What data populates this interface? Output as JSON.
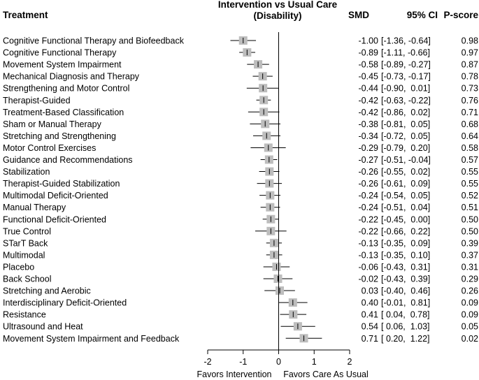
{
  "chart_data": {
    "type": "forest",
    "title": "Intervention vs Usual Care",
    "subtitle": "(Disability)",
    "columns": {
      "treatment": "Treatment",
      "smd": "SMD",
      "ci": "95% CI",
      "pscore": "P-score"
    },
    "xlim": [
      -2,
      2
    ],
    "xticks": [
      "-2",
      "-1",
      "0",
      "1",
      "2"
    ],
    "xtick_values": [
      -2,
      -1,
      0,
      1,
      2
    ],
    "reference_line": 0,
    "xlabel_left": "Favors Intervention",
    "xlabel_right": "Favors Care As Usual",
    "rows": [
      {
        "label": "Cognitive Functional Therapy and Biofeedback",
        "smd": -1.0,
        "lo": -1.36,
        "hi": -0.64,
        "smd_text": "-1.00",
        "ci_text": "[-1.36, -0.64]",
        "pscore": "0.98"
      },
      {
        "label": "Cognitive Functional Therapy",
        "smd": -0.89,
        "lo": -1.11,
        "hi": -0.66,
        "smd_text": "-0.89",
        "ci_text": "[-1.11, -0.66]",
        "pscore": "0.97"
      },
      {
        "label": "Movement System Impairment",
        "smd": -0.58,
        "lo": -0.89,
        "hi": -0.27,
        "smd_text": "-0.58",
        "ci_text": "[-0.89, -0.27]",
        "pscore": "0.87"
      },
      {
        "label": "Mechanical Diagnosis and Therapy",
        "smd": -0.45,
        "lo": -0.73,
        "hi": -0.17,
        "smd_text": "-0.45",
        "ci_text": "[-0.73, -0.17]",
        "pscore": "0.78"
      },
      {
        "label": "Strengthening and Motor Control",
        "smd": -0.44,
        "lo": -0.9,
        "hi": 0.01,
        "smd_text": "-0.44",
        "ci_text": "[-0.90,  0.01]",
        "pscore": "0.73"
      },
      {
        "label": "Therapist-Guided",
        "smd": -0.42,
        "lo": -0.63,
        "hi": -0.22,
        "smd_text": "-0.42",
        "ci_text": "[-0.63, -0.22]",
        "pscore": "0.76"
      },
      {
        "label": "Treatment-Based Classification",
        "smd": -0.42,
        "lo": -0.86,
        "hi": 0.02,
        "smd_text": "-0.42",
        "ci_text": "[-0.86,  0.02]",
        "pscore": "0.71"
      },
      {
        "label": "Sham or Manual Therapy",
        "smd": -0.38,
        "lo": -0.81,
        "hi": 0.05,
        "smd_text": "-0.38",
        "ci_text": "[-0.81,  0.05]",
        "pscore": "0.68"
      },
      {
        "label": "Stretching and Strengthening",
        "smd": -0.34,
        "lo": -0.72,
        "hi": 0.05,
        "smd_text": "-0.34",
        "ci_text": "[-0.72,  0.05]",
        "pscore": "0.64"
      },
      {
        "label": "Motor Control Exercises",
        "smd": -0.29,
        "lo": -0.79,
        "hi": 0.2,
        "smd_text": "-0.29",
        "ci_text": "[-0.79,  0.20]",
        "pscore": "0.58"
      },
      {
        "label": "Guidance and Recommendations",
        "smd": -0.27,
        "lo": -0.51,
        "hi": -0.04,
        "smd_text": "-0.27",
        "ci_text": "[-0.51, -0.04]",
        "pscore": "0.57"
      },
      {
        "label": "Stabilization",
        "smd": -0.26,
        "lo": -0.55,
        "hi": 0.02,
        "smd_text": "-0.26",
        "ci_text": "[-0.55,  0.02]",
        "pscore": "0.55"
      },
      {
        "label": "Therapist-Guided Stabilization",
        "smd": -0.26,
        "lo": -0.61,
        "hi": 0.09,
        "smd_text": "-0.26",
        "ci_text": "[-0.61,  0.09]",
        "pscore": "0.55"
      },
      {
        "label": "Multimodal Deficit-Oriented",
        "smd": -0.24,
        "lo": -0.54,
        "hi": 0.05,
        "smd_text": "-0.24",
        "ci_text": "[-0.54,  0.05]",
        "pscore": "0.52"
      },
      {
        "label": "Manual Therapy",
        "smd": -0.24,
        "lo": -0.51,
        "hi": 0.04,
        "smd_text": "-0.24",
        "ci_text": "[-0.51,  0.04]",
        "pscore": "0.51"
      },
      {
        "label": "Functional Deficit-Oriented",
        "smd": -0.22,
        "lo": -0.45,
        "hi": 0.0,
        "smd_text": "-0.22",
        "ci_text": "[-0.45,  0.00]",
        "pscore": "0.50"
      },
      {
        "label": "True Control",
        "smd": -0.22,
        "lo": -0.66,
        "hi": 0.22,
        "smd_text": "-0.22",
        "ci_text": "[-0.66,  0.22]",
        "pscore": "0.50"
      },
      {
        "label": "STarT Back",
        "smd": -0.13,
        "lo": -0.35,
        "hi": 0.09,
        "smd_text": "-0.13",
        "ci_text": "[-0.35,  0.09]",
        "pscore": "0.39"
      },
      {
        "label": "Multimodal",
        "smd": -0.13,
        "lo": -0.35,
        "hi": 0.1,
        "smd_text": "-0.13",
        "ci_text": "[-0.35,  0.10]",
        "pscore": "0.37"
      },
      {
        "label": "Placebo",
        "smd": -0.06,
        "lo": -0.43,
        "hi": 0.31,
        "smd_text": "-0.06",
        "ci_text": "[-0.43,  0.31]",
        "pscore": "0.31"
      },
      {
        "label": "Back School",
        "smd": -0.02,
        "lo": -0.43,
        "hi": 0.39,
        "smd_text": "-0.02",
        "ci_text": "[-0.43,  0.39]",
        "pscore": "0.29"
      },
      {
        "label": "Stretching and Aerobic",
        "smd": 0.03,
        "lo": -0.4,
        "hi": 0.46,
        "smd_text": "0.03",
        "ci_text": "[-0.40,  0.46]",
        "pscore": "0.26"
      },
      {
        "label": "Interdisciplinary Deficit-Oriented",
        "smd": 0.4,
        "lo": -0.01,
        "hi": 0.81,
        "smd_text": "0.40",
        "ci_text": "[-0.01,  0.81]",
        "pscore": "0.09"
      },
      {
        "label": "Resistance",
        "smd": 0.41,
        "lo": 0.04,
        "hi": 0.78,
        "smd_text": "0.41",
        "ci_text": "[ 0.04,  0.78]",
        "pscore": "0.09"
      },
      {
        "label": "Ultrasound and Heat",
        "smd": 0.54,
        "lo": 0.06,
        "hi": 1.03,
        "smd_text": "0.54",
        "ci_text": "[ 0.06,  1.03]",
        "pscore": "0.05"
      },
      {
        "label": "Movement System Impairment and Feedback",
        "smd": 0.71,
        "lo": 0.2,
        "hi": 1.22,
        "smd_text": "0.71",
        "ci_text": "[ 0.20,  1.22]",
        "pscore": "0.02"
      }
    ]
  }
}
